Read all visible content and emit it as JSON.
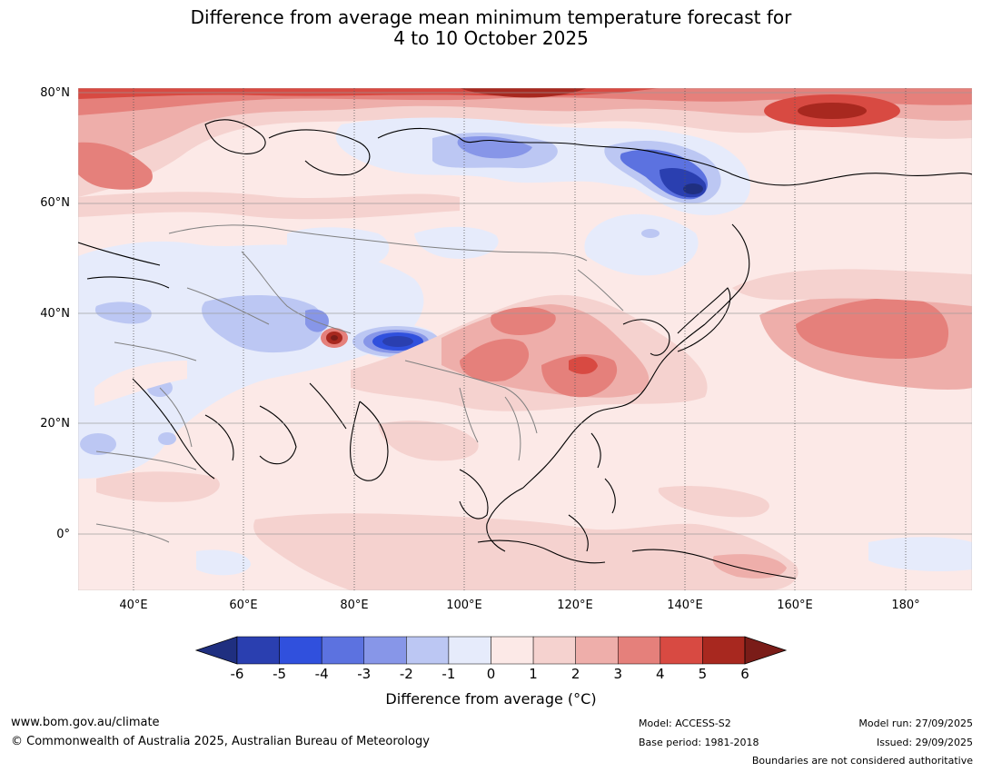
{
  "title": {
    "line1": "Difference from average mean minimum temperature forecast for",
    "line2": "4 to 10 October 2025"
  },
  "map": {
    "lat_labels": [
      "80°N",
      "60°N",
      "40°N",
      "20°N",
      "0°"
    ],
    "lon_labels": [
      "40°E",
      "60°E",
      "80°E",
      "100°E",
      "120°E",
      "140°E",
      "160°E",
      "180°"
    ],
    "extent_lon": [
      30,
      192
    ],
    "extent_lat": [
      -10,
      81
    ]
  },
  "colorbar": {
    "ticks": [
      "-6",
      "-5",
      "-4",
      "-3",
      "-2",
      "-1",
      "0",
      "1",
      "2",
      "3",
      "4",
      "5",
      "6"
    ],
    "colors": [
      "#1f2f80",
      "#2a3fb0",
      "#3050dd",
      "#5c72e0",
      "#8796e8",
      "#bcc7f3",
      "#e6ebfb",
      "#fce9e7",
      "#f5d2cf",
      "#eeaeaa",
      "#e5807b",
      "#d84a42",
      "#a8281f",
      "#7a1c18"
    ],
    "label": "Difference from average ($^\\circ$C)",
    "label_prefix": "Difference from average (",
    "label_unit": "°C",
    "label_suffix": ")"
  },
  "footer": {
    "website": "www.bom.gov.au/climate",
    "copyright": "© Commonwealth of Australia 2025, Australian Bureau of Meteorology",
    "model": "Model: ACCESS-S2",
    "base_period": "Base period: 1981-2018",
    "model_run": "Model run: 27/09/2025",
    "issued": "Issued: 29/09/2025",
    "disclaimer": "Boundaries are not considered authoritative"
  }
}
